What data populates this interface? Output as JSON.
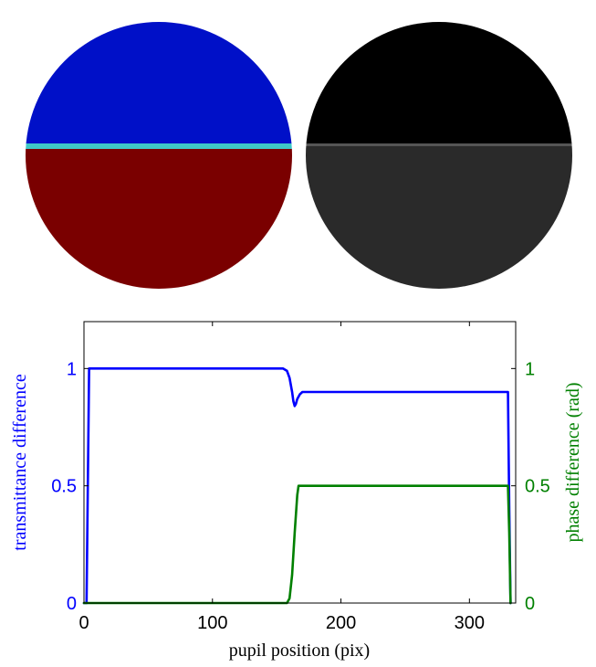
{
  "pupil_images": {
    "left": {
      "top_color": "#0010c8",
      "bottom_color": "#7a0000",
      "edge_color": "#3ec8c8"
    },
    "right": {
      "top_color": "#000000",
      "bottom_color": "#2a2a2a",
      "edge_color": "#555555"
    }
  },
  "colors": {
    "left_axis": "#0000ff",
    "right_axis": "#008000",
    "transmittance_line": "#0000ff",
    "phase_line": "#008000",
    "frame": "#000000"
  },
  "chart_data": {
    "type": "line",
    "xlabel": "pupil position (pix)",
    "ylabel_left": "transmittance difference",
    "ylabel_right": "phase difference (rad)",
    "xlim": [
      0,
      336
    ],
    "ylim_left": [
      0,
      1.2
    ],
    "ylim_right": [
      0,
      1.2
    ],
    "xticks": [
      0,
      100,
      200,
      300
    ],
    "xtick_labels": [
      "0",
      "100",
      "200",
      "300"
    ],
    "yticks_left": [
      0,
      0.5,
      1
    ],
    "ytick_labels_left": [
      "0",
      "0.5",
      "1"
    ],
    "yticks_right": [
      0,
      0.5,
      1
    ],
    "ytick_labels_right": [
      "0",
      "0.5",
      "1"
    ],
    "grid": false,
    "series": [
      {
        "name": "transmittance difference",
        "axis": "left",
        "x": [
          0,
          2,
          3,
          4,
          5,
          155,
          158,
          160,
          162,
          163,
          164,
          165,
          166,
          168,
          170,
          329,
          330,
          331,
          332
        ],
        "y": [
          0,
          0,
          0.5,
          1,
          1,
          1,
          0.99,
          0.96,
          0.9,
          0.86,
          0.84,
          0.85,
          0.87,
          0.89,
          0.9,
          0.9,
          0.9,
          0.4,
          0
        ]
      },
      {
        "name": "phase difference",
        "axis": "right",
        "x": [
          0,
          158,
          160,
          162,
          164,
          166,
          167,
          168,
          329,
          330,
          331,
          332
        ],
        "y": [
          0,
          0,
          0.02,
          0.12,
          0.3,
          0.46,
          0.5,
          0.5,
          0.5,
          0.5,
          0.3,
          0
        ]
      }
    ]
  }
}
